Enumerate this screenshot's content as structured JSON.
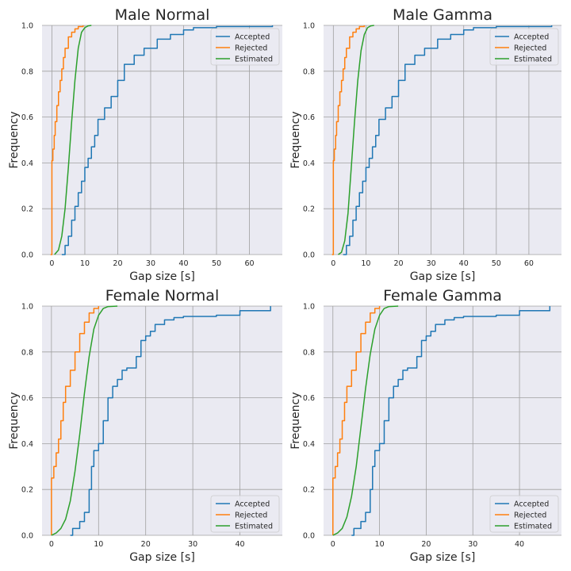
{
  "chart_data": [
    {
      "type": "line",
      "title": "Male Normal",
      "xlabel": "Gap size [s]",
      "ylabel": "Frequency",
      "xlim": [
        -3,
        70
      ],
      "ylim": [
        0,
        1.0
      ],
      "xticks": [
        0,
        10,
        20,
        30,
        40,
        50,
        60
      ],
      "yticks": [
        "0.0",
        "0.2",
        "0.4",
        "0.6",
        "0.8",
        "1.0"
      ],
      "grid": true,
      "legend": "top-right",
      "series": [
        {
          "name": "Accepted",
          "color": "#1f77b4",
          "step": true,
          "x": [
            3,
            4,
            5,
            6,
            7,
            8,
            9,
            10,
            11,
            12,
            13,
            14,
            16,
            18,
            20,
            22,
            25,
            28,
            32,
            36,
            40,
            43,
            50,
            67
          ],
          "y": [
            0.0,
            0.04,
            0.08,
            0.15,
            0.21,
            0.27,
            0.32,
            0.38,
            0.42,
            0.47,
            0.52,
            0.59,
            0.64,
            0.69,
            0.76,
            0.83,
            0.87,
            0.9,
            0.94,
            0.96,
            0.98,
            0.99,
            0.995,
            1.0
          ]
        },
        {
          "name": "Rejected",
          "color": "#ff7f0e",
          "step": true,
          "x": [
            -0.4,
            0,
            0.3,
            0.7,
            1,
            1.5,
            2,
            2.5,
            3,
            3.5,
            4,
            5,
            6,
            7,
            8,
            9.5
          ],
          "y": [
            0.0,
            0.41,
            0.46,
            0.52,
            0.58,
            0.65,
            0.71,
            0.76,
            0.81,
            0.86,
            0.9,
            0.95,
            0.97,
            0.985,
            0.995,
            1.0
          ]
        },
        {
          "name": "Estimated",
          "color": "#2ca02c",
          "step": false,
          "x": [
            0.8,
            2,
            3,
            4,
            5,
            6,
            7,
            8,
            9,
            10,
            11,
            12
          ],
          "y": [
            0.0,
            0.02,
            0.08,
            0.2,
            0.38,
            0.58,
            0.76,
            0.9,
            0.97,
            0.99,
            0.998,
            1.0
          ]
        }
      ]
    },
    {
      "type": "line",
      "title": "Male Gamma",
      "xlabel": "Gap size [s]",
      "ylabel": "Frequency",
      "xlim": [
        -3,
        70
      ],
      "ylim": [
        0,
        1.0
      ],
      "xticks": [
        0,
        10,
        20,
        30,
        40,
        50,
        60
      ],
      "yticks": [
        "0.0",
        "0.2",
        "0.4",
        "0.6",
        "0.8",
        "1.0"
      ],
      "grid": true,
      "legend": "top-right",
      "series": [
        {
          "name": "Accepted",
          "color": "#1f77b4",
          "step": true,
          "x": [
            3,
            4,
            5,
            6,
            7,
            8,
            9,
            10,
            11,
            12,
            13,
            14,
            16,
            18,
            20,
            22,
            25,
            28,
            32,
            36,
            40,
            43,
            50,
            67
          ],
          "y": [
            0.0,
            0.04,
            0.08,
            0.15,
            0.21,
            0.27,
            0.32,
            0.38,
            0.42,
            0.47,
            0.52,
            0.59,
            0.64,
            0.69,
            0.76,
            0.83,
            0.87,
            0.9,
            0.94,
            0.96,
            0.98,
            0.99,
            0.995,
            1.0
          ]
        },
        {
          "name": "Rejected",
          "color": "#ff7f0e",
          "step": true,
          "x": [
            -0.4,
            0,
            0.3,
            0.7,
            1,
            1.5,
            2,
            2.5,
            3,
            3.5,
            4,
            5,
            6,
            7,
            8,
            9.5
          ],
          "y": [
            0.0,
            0.41,
            0.46,
            0.52,
            0.58,
            0.65,
            0.71,
            0.76,
            0.81,
            0.86,
            0.9,
            0.95,
            0.97,
            0.985,
            0.995,
            1.0
          ]
        },
        {
          "name": "Estimated",
          "color": "#2ca02c",
          "step": false,
          "x": [
            1.5,
            2.5,
            3.5,
            4.5,
            5.5,
            6.5,
            7.5,
            8.5,
            9.5,
            10.5,
            11.5,
            12.5
          ],
          "y": [
            0.0,
            0.01,
            0.06,
            0.18,
            0.38,
            0.58,
            0.76,
            0.89,
            0.96,
            0.99,
            0.998,
            1.0
          ]
        }
      ]
    },
    {
      "type": "line",
      "title": "Female Normal",
      "xlabel": "Gap size [s]",
      "ylabel": "Frequency",
      "xlim": [
        -2,
        49
      ],
      "ylim": [
        0,
        1.0
      ],
      "xticks": [
        0,
        10,
        20,
        30,
        40
      ],
      "yticks": [
        "0.0",
        "0.2",
        "0.4",
        "0.6",
        "0.8",
        "1.0"
      ],
      "grid": true,
      "legend": "bottom-right",
      "series": [
        {
          "name": "Accepted",
          "color": "#1f77b4",
          "step": true,
          "x": [
            4,
            4.5,
            6,
            7,
            8,
            8.5,
            9,
            10,
            11,
            12,
            13,
            14,
            15,
            16,
            18,
            19,
            20,
            21,
            22,
            24,
            26,
            28,
            35,
            40,
            46.5
          ],
          "y": [
            0.0,
            0.03,
            0.06,
            0.1,
            0.2,
            0.3,
            0.37,
            0.4,
            0.5,
            0.6,
            0.65,
            0.68,
            0.72,
            0.73,
            0.78,
            0.85,
            0.87,
            0.89,
            0.92,
            0.94,
            0.95,
            0.955,
            0.96,
            0.98,
            1.0
          ]
        },
        {
          "name": "Rejected",
          "color": "#ff7f0e",
          "step": true,
          "x": [
            0,
            0.5,
            1,
            1.5,
            2,
            2.5,
            3,
            4,
            5,
            6,
            7,
            8,
            9,
            10
          ],
          "y": [
            0.25,
            0.3,
            0.36,
            0.42,
            0.5,
            0.58,
            0.65,
            0.72,
            0.8,
            0.88,
            0.93,
            0.97,
            0.99,
            1.0
          ]
        },
        {
          "name": "Estimated",
          "color": "#2ca02c",
          "step": false,
          "x": [
            0,
            1,
            2,
            3,
            4,
            5,
            6,
            7,
            8,
            9,
            10,
            11,
            12,
            14
          ],
          "y": [
            0.0,
            0.01,
            0.03,
            0.07,
            0.15,
            0.28,
            0.44,
            0.62,
            0.78,
            0.9,
            0.96,
            0.99,
            0.998,
            1.0
          ]
        }
      ]
    },
    {
      "type": "line",
      "title": "Female Gamma",
      "xlabel": "Gap size [s]",
      "ylabel": "Frequency",
      "xlim": [
        -2,
        49
      ],
      "ylim": [
        0,
        1.0
      ],
      "xticks": [
        0,
        10,
        20,
        30,
        40
      ],
      "yticks": [
        "0.0",
        "0.2",
        "0.4",
        "0.6",
        "0.8",
        "1.0"
      ],
      "grid": true,
      "legend": "bottom-right",
      "series": [
        {
          "name": "Accepted",
          "color": "#1f77b4",
          "step": true,
          "x": [
            4,
            4.5,
            6,
            7,
            8,
            8.5,
            9,
            10,
            11,
            12,
            13,
            14,
            15,
            16,
            18,
            19,
            20,
            21,
            22,
            24,
            26,
            28,
            35,
            40,
            46.5
          ],
          "y": [
            0.0,
            0.03,
            0.06,
            0.1,
            0.2,
            0.3,
            0.37,
            0.4,
            0.5,
            0.6,
            0.65,
            0.68,
            0.72,
            0.73,
            0.78,
            0.85,
            0.87,
            0.89,
            0.92,
            0.94,
            0.95,
            0.955,
            0.96,
            0.98,
            1.0
          ]
        },
        {
          "name": "Rejected",
          "color": "#ff7f0e",
          "step": true,
          "x": [
            0,
            0.5,
            1,
            1.5,
            2,
            2.5,
            3,
            4,
            5,
            6,
            7,
            8,
            9,
            10
          ],
          "y": [
            0.25,
            0.3,
            0.36,
            0.42,
            0.5,
            0.58,
            0.65,
            0.72,
            0.8,
            0.88,
            0.93,
            0.97,
            0.99,
            1.0
          ]
        },
        {
          "name": "Estimated",
          "color": "#2ca02c",
          "step": false,
          "x": [
            0,
            1,
            2,
            3,
            4,
            5,
            6,
            7,
            8,
            9,
            10,
            11,
            12,
            14
          ],
          "y": [
            0.0,
            0.01,
            0.03,
            0.08,
            0.17,
            0.3,
            0.47,
            0.64,
            0.79,
            0.9,
            0.96,
            0.99,
            0.998,
            1.0
          ]
        }
      ]
    }
  ],
  "style": {
    "axes_background": "#eaeaf2",
    "grid_color": "#a0a0a0",
    "text_color": "#262626"
  }
}
